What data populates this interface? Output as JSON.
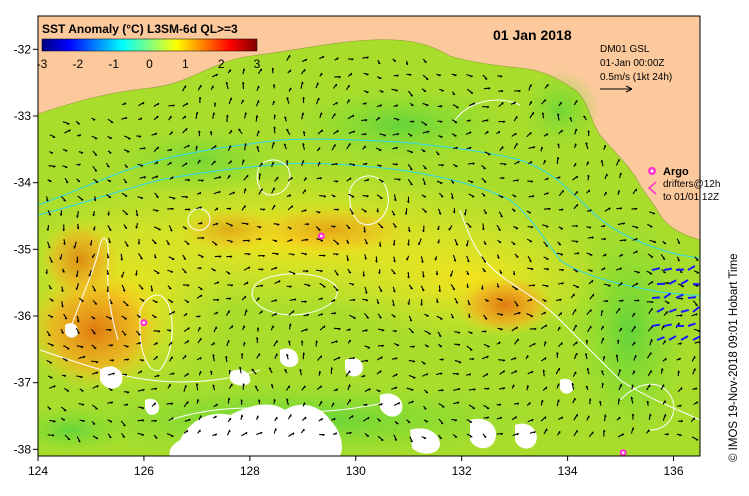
{
  "title": "SST Anomaly (°C) L3SM-6d QL>=3",
  "date": "01 Jan 2018",
  "colorbar": {
    "ticks": [
      "-3",
      "-2",
      "-1",
      "0",
      "1",
      "2",
      "3"
    ],
    "colors": [
      "#00007f",
      "#0000ff",
      "#0080ff",
      "#00ffff",
      "#80ff80",
      "#ffff00",
      "#ff8000",
      "#ff0000",
      "#7f0000"
    ]
  },
  "current_legend": {
    "source": "DM01 GSL",
    "time": "01-Jan 00:00Z",
    "scale": "0.5m/s (1kt 24h)"
  },
  "argo_legend": {
    "label": "Argo",
    "drifters_line1": "drifters@12h",
    "drifters_line2": "to 01/01 12Z"
  },
  "credit": "© IMOS 19-Nov-2018 09:01 Hobart Time",
  "axes": {
    "x_ticks": [
      "124",
      "126",
      "128",
      "130",
      "132",
      "134",
      "136"
    ],
    "y_ticks": [
      "-32",
      "-33",
      "-34",
      "-35",
      "-36",
      "-37",
      "-38"
    ],
    "lon_range": [
      124,
      136.5
    ],
    "lat_range": [
      -38.1,
      -31.5
    ]
  },
  "colors": {
    "land": "#fbc99b",
    "argo": "#ff33cc",
    "drifter": "#1a1aff",
    "contour": "#ffffff",
    "isobath": "#2ed8f0"
  },
  "argo_floats": [
    {
      "lon": 126.0,
      "lat": -36.1
    },
    {
      "lon": 129.35,
      "lat": -34.8
    },
    {
      "lon": 135.05,
      "lat": -38.05
    }
  ]
}
